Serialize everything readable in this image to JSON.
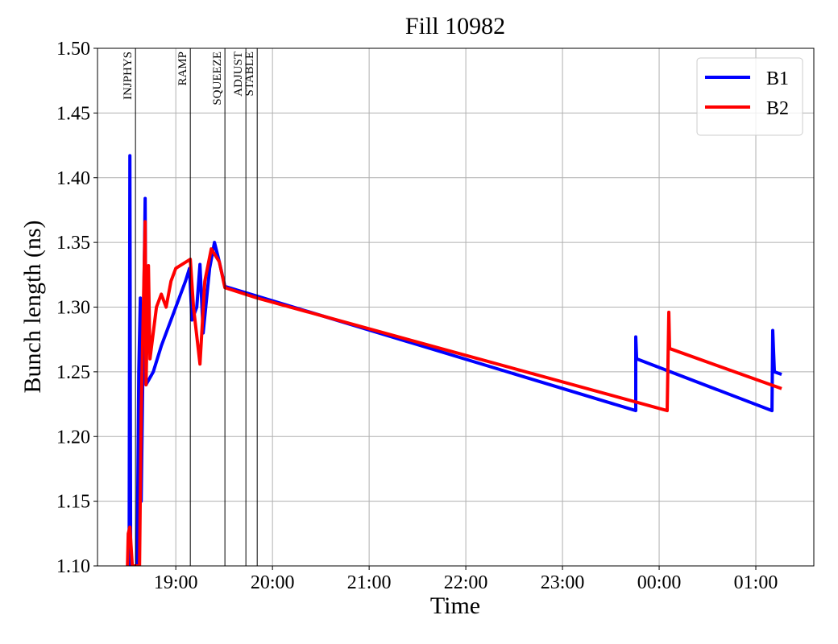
{
  "chart_data": {
    "type": "line",
    "title": "Fill 10982",
    "x_label": "Time",
    "y_label": "Bunch length (ns)",
    "xlim": [
      18.19,
      25.6
    ],
    "ylim": [
      1.1,
      1.5
    ],
    "xticks": [
      {
        "value": 19,
        "label": "19:00"
      },
      {
        "value": 20,
        "label": "20:00"
      },
      {
        "value": 21,
        "label": "21:00"
      },
      {
        "value": 22,
        "label": "22:00"
      },
      {
        "value": 23,
        "label": "23:00"
      },
      {
        "value": 24,
        "label": "00:00"
      },
      {
        "value": 25,
        "label": "01:00"
      }
    ],
    "yticks": [
      {
        "value": 1.1,
        "label": "1.10"
      },
      {
        "value": 1.15,
        "label": "1.15"
      },
      {
        "value": 1.2,
        "label": "1.20"
      },
      {
        "value": 1.25,
        "label": "1.25"
      },
      {
        "value": 1.3,
        "label": "1.30"
      },
      {
        "value": 1.35,
        "label": "1.35"
      },
      {
        "value": 1.4,
        "label": "1.40"
      },
      {
        "value": 1.45,
        "label": "1.45"
      },
      {
        "value": 1.5,
        "label": "1.50"
      }
    ],
    "grid": true,
    "legend": "upper right",
    "annotations": [
      {
        "label": "INJPHYS",
        "x": 18.583
      },
      {
        "label": "RAMP",
        "x": 19.15
      },
      {
        "label": "SQUEEZE",
        "x": 19.508
      },
      {
        "label": "ADJUST",
        "x": 19.725
      },
      {
        "label": "STABLE",
        "x": 19.842
      }
    ],
    "series": [
      {
        "name": "B1",
        "color": "#0000ff",
        "x": [
          18.517,
          18.525,
          18.533,
          18.6,
          18.617,
          18.633,
          18.642,
          18.683,
          18.692,
          18.767,
          18.85,
          18.975,
          19.1,
          19.142,
          19.167,
          19.217,
          19.25,
          19.283,
          19.35,
          19.4,
          19.45,
          19.508,
          23.758,
          23.758,
          23.767,
          25.167,
          25.175,
          25.192,
          25.267
        ],
        "values": [
          1.1,
          1.417,
          1.1,
          1.1,
          1.25,
          1.307,
          1.15,
          1.384,
          1.24,
          1.25,
          1.27,
          1.295,
          1.32,
          1.33,
          1.29,
          1.3,
          1.333,
          1.28,
          1.33,
          1.35,
          1.335,
          1.316,
          1.22,
          1.277,
          1.26,
          1.22,
          1.282,
          1.25,
          1.248
        ]
      },
      {
        "name": "B2",
        "color": "#ff0000",
        "x": [
          18.5,
          18.508,
          18.525,
          18.55,
          18.583,
          18.625,
          18.642,
          18.683,
          18.692,
          18.717,
          18.733,
          18.8,
          18.85,
          18.9,
          18.95,
          19.0,
          19.15,
          19.183,
          19.25,
          19.3,
          19.367,
          19.45,
          19.508,
          19.842,
          24.083,
          24.1,
          24.108,
          25.267
        ],
        "values": [
          1.1,
          1.125,
          1.13,
          1.1,
          1.1,
          1.1,
          1.22,
          1.366,
          1.24,
          1.332,
          1.26,
          1.3,
          1.31,
          1.3,
          1.32,
          1.33,
          1.337,
          1.3,
          1.256,
          1.32,
          1.345,
          1.335,
          1.315,
          1.307,
          1.22,
          1.296,
          1.268,
          1.237
        ]
      }
    ]
  }
}
